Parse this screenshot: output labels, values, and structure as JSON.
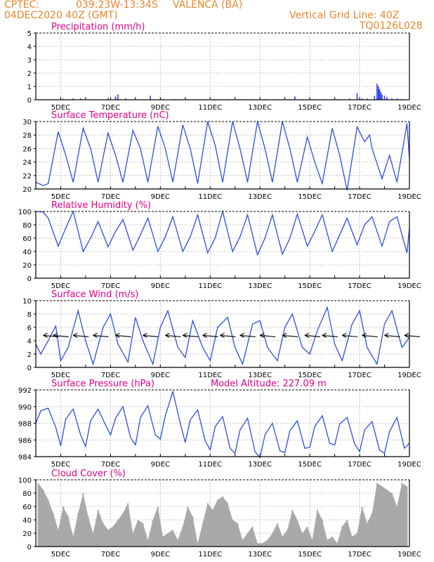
{
  "header": {
    "source": "CPTEC:",
    "coords": "039:23W-13:34S",
    "station": "VALENCA (BA)",
    "datetime": "04DEC2020 40Z (GMT)",
    "grid_line": "Vertical Grid Line: 40Z",
    "code": "TQ0126L028"
  },
  "colors": {
    "line": "#2b4fe0",
    "bar": "#2b3fe8",
    "cloud": "#a9a9a9",
    "title": "#e0008a",
    "header": "#e8862a"
  },
  "chart_data": [
    {
      "type": "bar",
      "title": "Precipitation (mm/h)",
      "ylim": [
        0,
        5
      ],
      "yticks": [
        "0",
        "1",
        "2",
        "3",
        "4",
        "5"
      ],
      "xticks": [
        "5DEC",
        "7DEC",
        "9DEC",
        "11DEC",
        "13DEC",
        "15DEC",
        "17DEC",
        "19DEC"
      ],
      "xlim_days": [
        4.0,
        19.0
      ],
      "x": [
        4.6,
        5.1,
        5.5,
        5.8,
        6.3,
        6.9,
        7.2,
        7.3,
        7.6,
        8.6,
        9.1,
        9.6,
        10.1,
        10.6,
        11.2,
        11.7,
        12.2,
        12.7,
        13.2,
        13.7,
        14.2,
        14.4,
        14.7,
        15.1,
        15.6,
        16.1,
        16.6,
        16.9,
        17.1,
        17.3,
        17.6,
        17.7,
        17.75,
        17.8,
        17.85,
        17.9,
        18.0,
        18.1,
        18.3,
        18.5,
        18.7
      ],
      "values": [
        0.05,
        0.08,
        0.1,
        0.1,
        0.05,
        0.15,
        0.25,
        0.4,
        0.1,
        0.3,
        0.05,
        0.05,
        0.05,
        0.05,
        0.05,
        0.05,
        0.05,
        0.05,
        0.05,
        0.05,
        0.05,
        0.25,
        0.05,
        0.05,
        0.05,
        0.05,
        0.1,
        0.5,
        0.1,
        0.1,
        0.3,
        1.2,
        1.0,
        0.8,
        0.6,
        0.4,
        0.3,
        0.2,
        0.1,
        0.1,
        0.05
      ]
    },
    {
      "type": "line",
      "title": "Surface Temperature (nC)",
      "ylim": [
        20,
        30
      ],
      "yticks": [
        "20",
        "22",
        "24",
        "26",
        "28",
        "30"
      ],
      "xticks": [
        "5DEC",
        "7DEC",
        "9DEC",
        "11DEC",
        "13DEC",
        "15DEC",
        "17DEC",
        "19DEC"
      ],
      "xlim_days": [
        4.0,
        19.0
      ],
      "x": [
        4.0,
        4.3,
        4.5,
        4.9,
        5.2,
        5.5,
        5.9,
        6.2,
        6.5,
        6.9,
        7.2,
        7.5,
        7.9,
        8.2,
        8.5,
        8.9,
        9.2,
        9.5,
        9.9,
        10.2,
        10.5,
        10.9,
        11.2,
        11.5,
        11.9,
        12.2,
        12.5,
        12.9,
        13.2,
        13.5,
        13.9,
        14.2,
        14.5,
        14.9,
        15.2,
        15.5,
        15.9,
        16.2,
        16.5,
        16.9,
        17.2,
        17.4,
        17.5,
        17.9,
        18.2,
        18.5,
        18.9,
        19.0
      ],
      "values": [
        21,
        20.5,
        20.8,
        28.5,
        25,
        21,
        29,
        26,
        21,
        28.3,
        25,
        21,
        28.7,
        26,
        21,
        29.3,
        26,
        21,
        29.5,
        26,
        20.8,
        30,
        26.5,
        21,
        30,
        26,
        21,
        30,
        26,
        21,
        30,
        26,
        21,
        27.7,
        24,
        20.8,
        29,
        25,
        19.8,
        29.2,
        27,
        28,
        26,
        21.5,
        25,
        21,
        29.7,
        24.5
      ]
    },
    {
      "type": "line",
      "title": "Relative Humidity (%)",
      "ylim": [
        0,
        100
      ],
      "yticks": [
        "0",
        "20",
        "40",
        "60",
        "80",
        "100"
      ],
      "xticks": [
        "5DEC",
        "7DEC",
        "9DEC",
        "11DEC",
        "13DEC",
        "15DEC",
        "17DEC",
        "19DEC"
      ],
      "xlim_days": [
        4.0,
        19.0
      ],
      "x": [
        4.0,
        4.3,
        4.5,
        4.9,
        5.2,
        5.5,
        5.9,
        6.2,
        6.5,
        6.9,
        7.2,
        7.5,
        7.9,
        8.2,
        8.5,
        8.9,
        9.2,
        9.5,
        9.9,
        10.2,
        10.5,
        10.9,
        11.2,
        11.5,
        11.9,
        12.2,
        12.5,
        12.9,
        13.2,
        13.5,
        13.9,
        14.2,
        14.5,
        14.9,
        15.2,
        15.5,
        15.9,
        16.2,
        16.5,
        16.9,
        17.2,
        17.5,
        17.9,
        18.2,
        18.5,
        18.9,
        19.0
      ],
      "values": [
        100,
        99,
        90,
        48,
        75,
        100,
        40,
        60,
        85,
        47,
        70,
        88,
        42,
        65,
        90,
        40,
        62,
        92,
        40,
        62,
        95,
        38,
        60,
        100,
        40,
        62,
        95,
        35,
        60,
        95,
        36,
        60,
        96,
        48,
        70,
        95,
        40,
        65,
        90,
        50,
        80,
        92,
        48,
        85,
        92,
        38,
        75
      ]
    },
    {
      "type": "line",
      "title": "Surface Wind (m/s)",
      "ylim": [
        0,
        10
      ],
      "yticks": [
        "0",
        "2",
        "4",
        "6",
        "8",
        "10"
      ],
      "xticks": [
        "5DEC",
        "7DEC",
        "9DEC",
        "11DEC",
        "13DEC",
        "15DEC",
        "17DEC",
        "19DEC"
      ],
      "xlim_days": [
        4.0,
        19.0
      ],
      "x": [
        4.0,
        4.2,
        4.5,
        4.8,
        5.0,
        5.3,
        5.7,
        6.0,
        6.3,
        6.7,
        7.0,
        7.3,
        7.7,
        8.0,
        8.3,
        8.7,
        9.0,
        9.3,
        9.7,
        10.0,
        10.3,
        10.7,
        11.0,
        11.3,
        11.7,
        12.0,
        12.3,
        12.7,
        13.0,
        13.3,
        13.7,
        14.0,
        14.3,
        14.7,
        15.0,
        15.3,
        15.7,
        16.0,
        16.3,
        16.7,
        17.0,
        17.3,
        17.7,
        18.0,
        18.3,
        18.7,
        19.0
      ],
      "values": [
        3.5,
        2,
        4,
        6.2,
        1,
        3,
        8.5,
        4,
        0.5,
        6,
        8,
        3.5,
        0.8,
        7.5,
        4,
        0.5,
        6,
        8.5,
        3,
        1.5,
        7,
        3,
        1,
        6,
        7.5,
        3,
        0.5,
        6.5,
        7,
        3,
        1,
        6,
        8,
        3,
        2,
        5.5,
        9,
        3.5,
        1,
        6.5,
        8.5,
        3,
        0.5,
        6.5,
        8.5,
        3,
        4.5
      ],
      "arrows": [
        4.3,
        4.7,
        5.5,
        6.3,
        7.2,
        8.3,
        9.2,
        9.9,
        10.7,
        11.4,
        12.2,
        13.0,
        13.9,
        14.8,
        15.5,
        16.3,
        17.1,
        18.0,
        18.8
      ]
    },
    {
      "type": "line",
      "title": "Surface Pressure (hPa)",
      "subtitle": "Model Altitude: 227.09 m",
      "ylim": [
        984,
        992
      ],
      "yticks": [
        "984",
        "986",
        "988",
        "990",
        "992"
      ],
      "xticks": [
        "5DEC",
        "7DEC",
        "9DEC",
        "11DEC",
        "13DEC",
        "15DEC",
        "17DEC",
        "19DEC"
      ],
      "xlim_days": [
        4.0,
        19.0
      ],
      "x": [
        4.0,
        4.2,
        4.5,
        4.8,
        5.0,
        5.2,
        5.5,
        5.8,
        6.0,
        6.2,
        6.5,
        6.8,
        7.0,
        7.2,
        7.5,
        7.8,
        8.0,
        8.2,
        8.5,
        8.8,
        9.0,
        9.2,
        9.5,
        9.8,
        10.0,
        10.2,
        10.5,
        10.8,
        11.0,
        11.2,
        11.5,
        11.8,
        12.0,
        12.2,
        12.5,
        12.8,
        13.0,
        13.2,
        13.5,
        13.8,
        14.0,
        14.2,
        14.5,
        14.8,
        15.0,
        15.2,
        15.5,
        15.8,
        16.0,
        16.2,
        16.5,
        16.8,
        17.0,
        17.2,
        17.5,
        17.8,
        18.0,
        18.2,
        18.5,
        18.8,
        19.0
      ],
      "values": [
        988,
        989.5,
        989.8,
        987.5,
        985.3,
        988.5,
        989.7,
        986.6,
        985.2,
        988.3,
        989.7,
        987.8,
        986.6,
        988.6,
        990,
        986.3,
        985.4,
        988.7,
        990.1,
        986.6,
        986.1,
        988.9,
        991.8,
        988,
        985.7,
        988.4,
        989.6,
        985.9,
        984.8,
        987.6,
        988.8,
        985,
        984.4,
        987.2,
        988.6,
        984.6,
        983.9,
        986.6,
        988,
        984.7,
        984.5,
        987.1,
        988.3,
        985,
        985.1,
        987.6,
        988.9,
        985.6,
        985.4,
        987.9,
        988.7,
        985.5,
        984.6,
        987.2,
        988.2,
        984.8,
        984.4,
        987,
        988.7,
        985,
        985.6
      ]
    },
    {
      "type": "bar",
      "title": "Cloud Cover (%)",
      "ylim": [
        0,
        100
      ],
      "yticks": [
        "0",
        "20",
        "40",
        "60",
        "80",
        "100"
      ],
      "xticks": [
        "5DEC",
        "7DEC",
        "9DEC",
        "11DEC",
        "13DEC",
        "15DEC",
        "17DEC",
        "19DEC"
      ],
      "xlim_days": [
        4.0,
        19.0
      ],
      "x": [
        4.1,
        4.3,
        4.5,
        4.7,
        4.9,
        5.1,
        5.3,
        5.5,
        5.7,
        5.9,
        6.1,
        6.3,
        6.5,
        6.7,
        6.9,
        7.1,
        7.3,
        7.5,
        7.7,
        7.9,
        8.1,
        8.3,
        8.5,
        8.7,
        8.9,
        9.1,
        9.3,
        9.5,
        9.7,
        9.9,
        10.1,
        10.3,
        10.5,
        10.7,
        10.9,
        11.1,
        11.3,
        11.5,
        11.7,
        11.9,
        12.1,
        12.3,
        12.5,
        12.7,
        12.9,
        13.1,
        13.3,
        13.5,
        13.7,
        13.9,
        14.1,
        14.3,
        14.5,
        14.7,
        14.9,
        15.1,
        15.3,
        15.5,
        15.7,
        15.9,
        16.1,
        16.3,
        16.5,
        16.7,
        16.9,
        17.1,
        17.3,
        17.5,
        17.7,
        17.9,
        18.1,
        18.3,
        18.5,
        18.7,
        18.9
      ],
      "values": [
        95,
        85,
        70,
        50,
        25,
        60,
        45,
        15,
        50,
        80,
        45,
        20,
        55,
        35,
        25,
        30,
        40,
        50,
        65,
        20,
        40,
        35,
        10,
        40,
        60,
        15,
        20,
        25,
        10,
        30,
        60,
        45,
        5,
        35,
        65,
        55,
        70,
        75,
        65,
        40,
        35,
        10,
        20,
        30,
        5,
        5,
        10,
        20,
        35,
        15,
        25,
        55,
        40,
        20,
        30,
        10,
        55,
        40,
        10,
        15,
        5,
        30,
        40,
        15,
        20,
        60,
        35,
        50,
        95,
        90,
        85,
        80,
        60,
        95,
        90
      ]
    }
  ]
}
